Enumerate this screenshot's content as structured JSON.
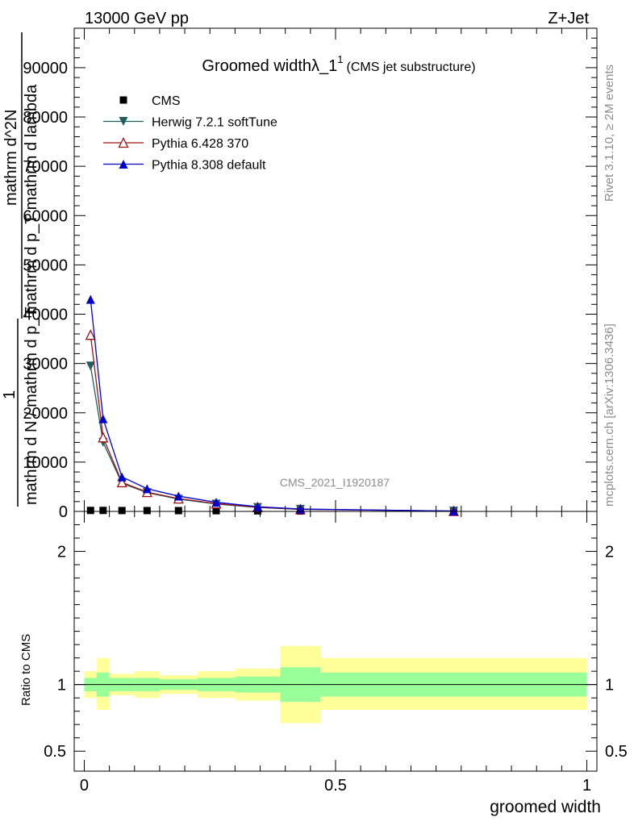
{
  "header": {
    "left": "13000 GeV pp",
    "right": "Z+Jet"
  },
  "side": {
    "rivet": "Rivet 3.1.10, ≥ 2M events",
    "mcplots": "mcplots.cern.ch [arXiv:1306.3436]"
  },
  "chart_data": {
    "type": "line",
    "title_main": "Groomed widthλ_1",
    "title_sup": "1",
    "title_sub": "(CMS jet substructure)",
    "watermark": "CMS_2021_I1920187",
    "xlabel": "groomed width",
    "ylabel_main_lines": [
      "mathrm d^2N",
      "mathrm d p_T mathrm d lambda",
      "1",
      "mathrm d N / mathrm d p_T"
    ],
    "ylabel_ratio": "Ratio to CMS",
    "xlim": [
      -0.02,
      1.02
    ],
    "ylim": [
      0,
      98000
    ],
    "ratio_ylim": [
      0.35,
      2.3
    ],
    "x_ticks": [
      0,
      0.5,
      1
    ],
    "x_tick_labels": [
      "0",
      "0.5",
      "1"
    ],
    "y_ticks": [
      10000,
      20000,
      30000,
      40000,
      50000,
      60000,
      70000,
      80000,
      90000
    ],
    "y_tick_labels": [
      "10000",
      "20000",
      "30000",
      "40000",
      "50000",
      "60000",
      "70000",
      "80000",
      "90000"
    ],
    "y_zero_label": "0",
    "ratio_ticks": [
      0.5,
      1,
      2
    ],
    "ratio_tick_labels": [
      "0.5",
      "1",
      "2"
    ],
    "bins": [
      0,
      0.025,
      0.05,
      0.1,
      0.15,
      0.225,
      0.3,
      0.39,
      0.47,
      1.0
    ],
    "x": [
      0.0125,
      0.0375,
      0.075,
      0.125,
      0.1875,
      0.2625,
      0.345,
      0.43,
      0.735
    ],
    "legend_position": "top-left",
    "series": [
      {
        "name": "CMS",
        "marker": "square",
        "color": "#000000",
        "values": [
          200,
          200,
          180,
          170,
          160,
          140,
          110,
          80,
          25
        ]
      },
      {
        "name": "Herwig 7.2.1 softTune",
        "marker": "triangle-down",
        "color": "#1f5f5f",
        "values": [
          29500,
          14000,
          5700,
          3800,
          2500,
          1500,
          800,
          420,
          60
        ]
      },
      {
        "name": "Pythia 6.428 370",
        "marker": "triangle-up-open",
        "color": "#a01010",
        "values": [
          35800,
          15000,
          5900,
          3900,
          2600,
          1600,
          850,
          440,
          65
        ]
      },
      {
        "name": "Pythia 8.308 default",
        "marker": "triangle-up",
        "color": "#0000cc",
        "values": [
          43000,
          18800,
          7000,
          4600,
          3100,
          1850,
          950,
          480,
          70
        ]
      }
    ],
    "ratio_bands": {
      "colors": {
        "inner": "#99ff99",
        "outer": "#ffff99"
      },
      "inner_lo": [
        0.95,
        0.91,
        0.95,
        0.95,
        0.96,
        0.95,
        0.94,
        0.87,
        0.91
      ],
      "inner_hi": [
        1.05,
        1.09,
        1.05,
        1.05,
        1.04,
        1.05,
        1.06,
        1.13,
        1.09
      ],
      "outer_lo": [
        0.9,
        0.81,
        0.92,
        0.9,
        0.93,
        0.9,
        0.88,
        0.71,
        0.81
      ],
      "outer_hi": [
        1.1,
        1.2,
        1.08,
        1.1,
        1.07,
        1.1,
        1.12,
        1.29,
        1.2
      ]
    }
  }
}
